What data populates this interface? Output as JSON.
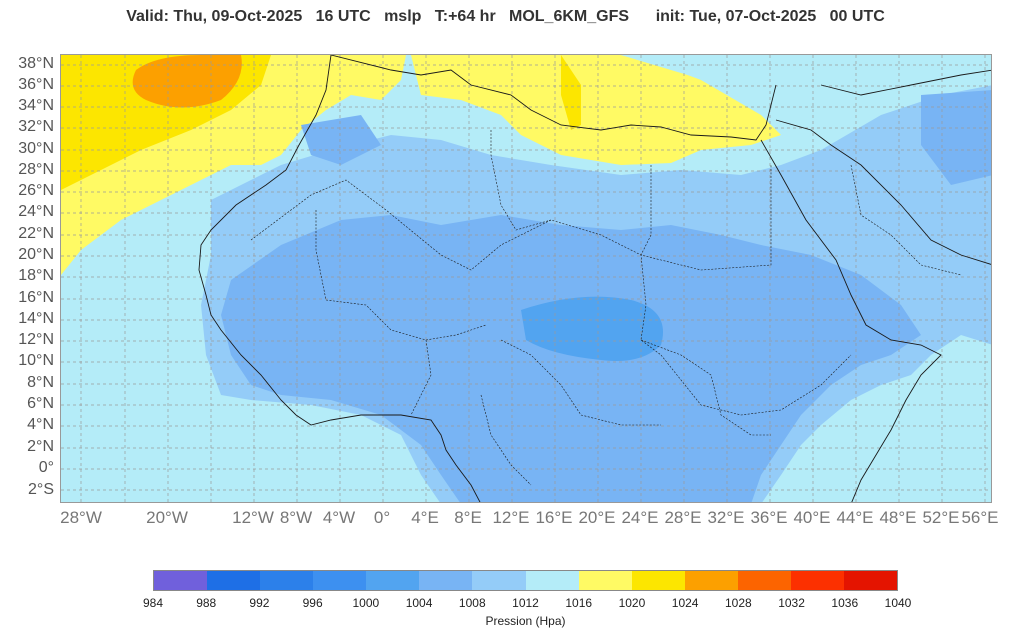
{
  "header": {
    "title": "Valid: Thu, 09-Oct-2025   16 UTC   mslp   T:+64 hr   MOL_6KM_GFS      init: Tue, 07-Oct-2025   00 UTC"
  },
  "map": {
    "lat_labels": [
      "38°N",
      "36°N",
      "34°N",
      "32°N",
      "30°N",
      "28°N",
      "26°N",
      "24°N",
      "22°N",
      "20°N",
      "18°N",
      "16°N",
      "14°N",
      "12°N",
      "10°N",
      "8°N",
      "6°N",
      "4°N",
      "2°N",
      "0°",
      "2°S"
    ],
    "lon_labels": [
      "28°W",
      "20°W",
      "12°W",
      "8°W",
      "4°W",
      "0°",
      "4°E",
      "8°E",
      "12°E",
      "16°E",
      "20°E",
      "24°E",
      "28°E",
      "32°E",
      "36°E",
      "40°E",
      "44°E",
      "48°E",
      "52°E",
      "56°E"
    ],
    "colors": {
      "land_border": "#1a1a1a",
      "grid": "#9a9a9a"
    }
  },
  "legend": {
    "label": "Pression (Hpa)",
    "ticks": [
      "984",
      "988",
      "992",
      "996",
      "1000",
      "1004",
      "1008",
      "1012",
      "1016",
      "1020",
      "1024",
      "1028",
      "1032",
      "1036",
      "1040"
    ],
    "colors": [
      "#7060dc",
      "#1e6fe6",
      "#2c80ea",
      "#3d90f0",
      "#52a4f0",
      "#78b4f4",
      "#94ccf8",
      "#b4ecf8",
      "#fffa64",
      "#fce600",
      "#fca000",
      "#fc6400",
      "#fc3000",
      "#e41400"
    ]
  }
}
